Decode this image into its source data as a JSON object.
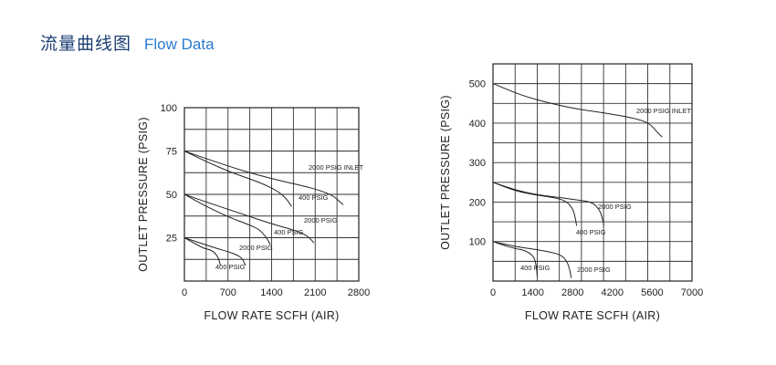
{
  "header": {
    "title_zh": "流量曲线图",
    "title_en": "Flow Data"
  },
  "chart_data": [
    {
      "type": "line",
      "xlabel": "FLOW  RATE SCFH (AIR)",
      "ylabel": "OUTLET  PRESSURE (PSIG)",
      "xlim": [
        0,
        2800
      ],
      "ylim": [
        0,
        100
      ],
      "xticks": [
        "0",
        "700",
        "1400",
        "2100",
        "2800"
      ],
      "yticks": [
        "25",
        "50",
        "75",
        "100"
      ],
      "grid": true,
      "series": [
        {
          "name": "2000 PSIG INLET",
          "points": [
            [
              0,
              75
            ],
            [
              400,
              70
            ],
            [
              900,
              64
            ],
            [
              1400,
              59
            ],
            [
              1900,
              55
            ],
            [
              2200,
              52
            ],
            [
              2400,
              49
            ],
            [
              2550,
              44
            ]
          ]
        },
        {
          "name": "400 PSIG",
          "points": [
            [
              0,
              75
            ],
            [
              400,
              68
            ],
            [
              800,
              62
            ],
            [
              1200,
              57
            ],
            [
              1500,
              52
            ],
            [
              1650,
              47
            ],
            [
              1720,
              43
            ]
          ]
        },
        {
          "name": "2000 PSIG",
          "points": [
            [
              0,
              50
            ],
            [
              400,
              45
            ],
            [
              900,
              39
            ],
            [
              1400,
              33
            ],
            [
              1800,
              29
            ],
            [
              1980,
              26
            ],
            [
              2080,
              22
            ]
          ]
        },
        {
          "name": "400 PSIG",
          "points": [
            [
              0,
              50
            ],
            [
              300,
              44
            ],
            [
              700,
              37
            ],
            [
              1000,
              33
            ],
            [
              1200,
              30
            ],
            [
              1320,
              25
            ],
            [
              1380,
              21
            ]
          ]
        },
        {
          "name": "2000 PSIG",
          "points": [
            [
              0,
              25
            ],
            [
              250,
              22
            ],
            [
              500,
              19
            ],
            [
              700,
              17
            ],
            [
              850,
              15
            ],
            [
              930,
              13
            ],
            [
              980,
              9
            ]
          ]
        },
        {
          "name": "400 PSIG",
          "points": [
            [
              0,
              25
            ],
            [
              150,
              22
            ],
            [
              300,
              19
            ],
            [
              420,
              18
            ],
            [
              500,
              16
            ],
            [
              550,
              13
            ],
            [
              580,
              9
            ]
          ]
        }
      ]
    },
    {
      "type": "line",
      "xlabel": "FLOW  RATE SCFH (AIR)",
      "ylabel": "OUTLET  PRESSURE (PSIG)",
      "xlim": [
        0,
        7000
      ],
      "ylim": [
        0,
        550
      ],
      "xticks": [
        "0",
        "1400",
        "2800",
        "4200",
        "5600",
        "7000"
      ],
      "yticks": [
        "100",
        "200",
        "300",
        "400",
        "500"
      ],
      "grid": true,
      "series": [
        {
          "name": "2000 PSIG INLET",
          "points": [
            [
              0,
              500
            ],
            [
              1000,
              470
            ],
            [
              2000,
              450
            ],
            [
              3000,
              435
            ],
            [
              4000,
              425
            ],
            [
              5000,
              412
            ],
            [
              5500,
              400
            ],
            [
              5800,
              375
            ],
            [
              5950,
              365
            ]
          ]
        },
        {
          "name": "2000 PSIG",
          "points": [
            [
              0,
              250
            ],
            [
              800,
              230
            ],
            [
              1600,
              218
            ],
            [
              2500,
              210
            ],
            [
              3000,
              205
            ],
            [
              3500,
              200
            ],
            [
              3750,
              180
            ],
            [
              3850,
              160
            ],
            [
              3900,
              140
            ]
          ]
        },
        {
          "name": "400 PSIG",
          "points": [
            [
              0,
              250
            ],
            [
              800,
              228
            ],
            [
              1500,
              218
            ],
            [
              2100,
              212
            ],
            [
              2500,
              205
            ],
            [
              2750,
              190
            ],
            [
              2870,
              170
            ],
            [
              2940,
              140
            ]
          ]
        },
        {
          "name": "2000 PSIG",
          "points": [
            [
              0,
              100
            ],
            [
              500,
              92
            ],
            [
              1000,
              85
            ],
            [
              1500,
              80
            ],
            [
              2000,
              74
            ],
            [
              2400,
              66
            ],
            [
              2600,
              50
            ],
            [
              2700,
              30
            ],
            [
              2750,
              8
            ]
          ]
        },
        {
          "name": "400 PSIG",
          "points": [
            [
              0,
              100
            ],
            [
              400,
              90
            ],
            [
              800,
              82
            ],
            [
              1100,
              78
            ],
            [
              1300,
              70
            ],
            [
              1450,
              60
            ],
            [
              1520,
              40
            ],
            [
              1560,
              10
            ]
          ]
        }
      ]
    }
  ]
}
